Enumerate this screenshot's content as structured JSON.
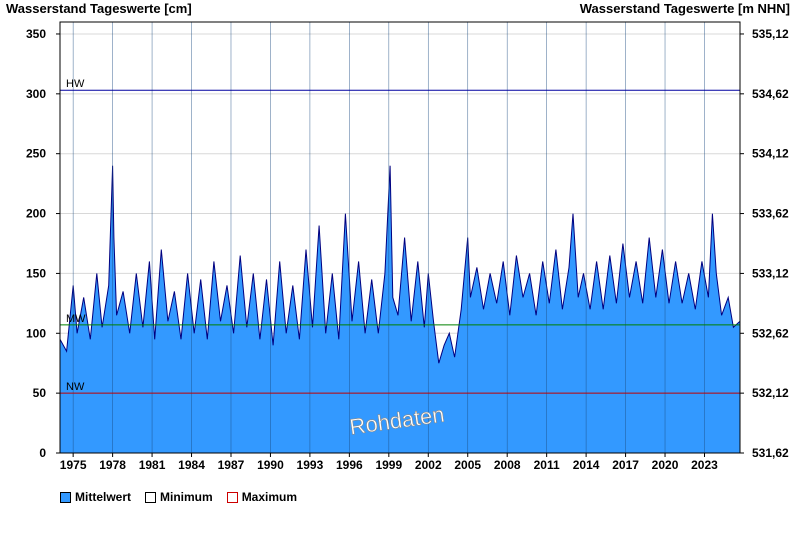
{
  "chart_data": {
    "type": "area",
    "ylabel": "Wasserstand Tageswerte [cm]",
    "ylabel_right": "Wasserstand Tageswerte [m NHN]",
    "ylim": [
      0,
      360
    ],
    "yticks": [
      0,
      50,
      100,
      150,
      200,
      250,
      300,
      350
    ],
    "yticks_right": [
      "531,62",
      "532,12",
      "532,62",
      "533,12",
      "533,62",
      "534,12",
      "534,62",
      "535,12"
    ],
    "xlim": [
      1974.0,
      2025.7
    ],
    "xticks": [
      1975,
      1978,
      1981,
      1984,
      1987,
      1990,
      1993,
      1996,
      1999,
      2002,
      2005,
      2008,
      2011,
      2014,
      2017,
      2020,
      2023
    ],
    "xtick_labels": [
      "1975",
      "1978",
      "1981",
      "1984",
      "1987",
      "1990",
      "1993",
      "1996",
      "1999",
      "2002",
      "2005",
      "2008",
      "2011",
      "2014",
      "2017",
      "2020",
      "2023"
    ],
    "reference_lines": [
      {
        "label": "HW",
        "value": 303,
        "color": "#0000a0"
      },
      {
        "label": "MW",
        "value": 107,
        "color": "#008000"
      },
      {
        "label": "NW",
        "value": 50,
        "color": "#c00000"
      }
    ],
    "watermark": "Rohdaten",
    "series": [
      {
        "name": "Mittelwert",
        "color": "#3399ff",
        "x": [
          1974.0,
          1974.5,
          1975.0,
          1975.3,
          1975.8,
          1976.3,
          1976.8,
          1977.2,
          1977.7,
          1978.0,
          1978.1,
          1978.3,
          1978.8,
          1979.3,
          1979.8,
          1980.3,
          1980.8,
          1981.2,
          1981.7,
          1982.2,
          1982.7,
          1983.2,
          1983.7,
          1984.2,
          1984.7,
          1985.2,
          1985.7,
          1986.2,
          1986.7,
          1987.2,
          1987.7,
          1988.2,
          1988.7,
          1989.2,
          1989.7,
          1990.2,
          1990.7,
          1991.2,
          1991.7,
          1992.2,
          1992.7,
          1993.2,
          1993.7,
          1994.2,
          1994.7,
          1995.2,
          1995.7,
          1996.2,
          1996.7,
          1997.2,
          1997.7,
          1998.2,
          1998.7,
          1999.1,
          1999.3,
          1999.7,
          2000.2,
          2000.7,
          2001.2,
          2001.7,
          2002.0,
          2002.4,
          2002.8,
          2003.2,
          2003.6,
          2004.0,
          2004.5,
          2005.0,
          2005.2,
          2005.7,
          2006.2,
          2006.7,
          2007.2,
          2007.7,
          2008.2,
          2008.7,
          2009.2,
          2009.7,
          2010.2,
          2010.7,
          2011.2,
          2011.7,
          2012.2,
          2012.7,
          2013.0,
          2013.4,
          2013.8,
          2014.3,
          2014.8,
          2015.3,
          2015.8,
          2016.3,
          2016.8,
          2017.3,
          2017.8,
          2018.3,
          2018.8,
          2019.3,
          2019.8,
          2020.3,
          2020.8,
          2021.3,
          2021.8,
          2022.3,
          2022.8,
          2023.3,
          2023.6,
          2023.9,
          2024.3,
          2024.8,
          2025.2,
          2025.7
        ],
        "values": [
          95,
          85,
          140,
          100,
          130,
          95,
          150,
          105,
          140,
          240,
          180,
          115,
          135,
          100,
          150,
          105,
          160,
          95,
          170,
          110,
          135,
          95,
          150,
          100,
          145,
          95,
          160,
          110,
          140,
          100,
          165,
          105,
          150,
          95,
          145,
          90,
          160,
          100,
          140,
          95,
          170,
          105,
          190,
          100,
          150,
          95,
          200,
          110,
          160,
          100,
          145,
          100,
          150,
          240,
          130,
          115,
          180,
          110,
          160,
          105,
          150,
          110,
          75,
          90,
          100,
          80,
          120,
          180,
          130,
          155,
          120,
          150,
          125,
          160,
          115,
          165,
          130,
          150,
          115,
          160,
          125,
          170,
          120,
          155,
          200,
          130,
          150,
          120,
          160,
          120,
          165,
          125,
          175,
          130,
          160,
          125,
          180,
          130,
          170,
          125,
          160,
          125,
          150,
          120,
          160,
          130,
          200,
          150,
          115,
          130,
          105,
          110
        ]
      },
      {
        "name": "Minimum",
        "color": "#ffffff",
        "stroke": "#000000"
      },
      {
        "name": "Maximum",
        "color": "#ffffff",
        "stroke": "#cc0000"
      }
    ]
  }
}
